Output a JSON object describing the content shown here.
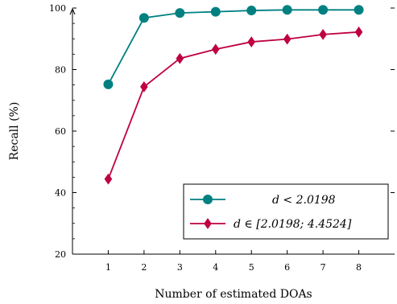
{
  "chart_data": {
    "type": "line",
    "xlabel": "Number of estimated DOAs",
    "ylabel": "Recall (%)",
    "x": [
      1,
      2,
      3,
      4,
      5,
      6,
      7,
      8
    ],
    "xlim": [
      0,
      9
    ],
    "ylim": [
      20,
      100
    ],
    "yticks": [
      20,
      40,
      60,
      80,
      100
    ],
    "xticks": [
      1,
      2,
      3,
      4,
      5,
      6,
      7,
      8
    ],
    "legend_position": "bottom-right",
    "grid": false,
    "series": [
      {
        "name": "d < 2.0198",
        "color": "#008080",
        "marker": "circle",
        "values": [
          75.2,
          96.8,
          98.4,
          98.8,
          99.2,
          99.4,
          99.4,
          99.4
        ]
      },
      {
        "name": "d ∈ [2.0198; 4.4524]",
        "color": "#bf0040",
        "marker": "diamond",
        "values": [
          44.4,
          74.4,
          83.6,
          86.6,
          89.0,
          89.9,
          91.4,
          92.2
        ]
      }
    ]
  }
}
